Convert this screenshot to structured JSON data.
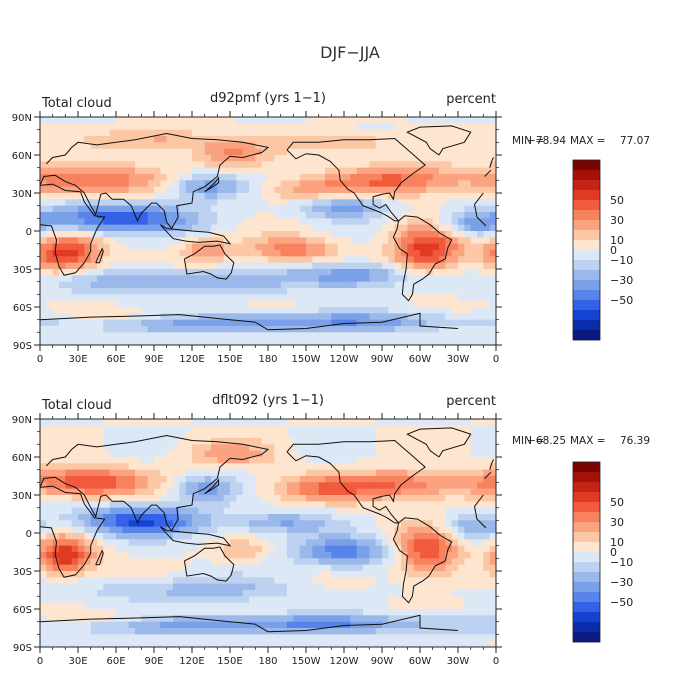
{
  "chart_data": {
    "type": "heatmap",
    "title": "DJF−JJA",
    "x_ticks": [
      "0",
      "30E",
      "60E",
      "90E",
      "120E",
      "150E",
      "180",
      "150W",
      "120W",
      "90W",
      "60W",
      "30W",
      "0"
    ],
    "y_ticks": [
      "90N",
      "60N",
      "30N",
      "0",
      "30S",
      "60S",
      "90S"
    ],
    "xlim": [
      0,
      360
    ],
    "ylim": [
      -90,
      90
    ],
    "colorbar_labels": [
      "50",
      "30",
      "10",
      "0",
      "−10",
      "−30",
      "−50"
    ],
    "colors": [
      "#fde5cf",
      "#fcc7a5",
      "#fba381",
      "#f8825e",
      "#f25a3d",
      "#e03a23",
      "#c42413",
      "#a31108",
      "#7b0403",
      "#dce8f6",
      "#bcd2f0",
      "#9bb8eb",
      "#7aa0ea",
      "#5884ea",
      "#3462e6",
      "#1443d2",
      "#0b2dab",
      "#0a1a80"
    ],
    "panels": [
      {
        "left_label": "Total cloud",
        "center_label": "d92pmf (yrs 1−1)",
        "right_label": "percent",
        "min_label": "MIN =",
        "min_value": "−78.94",
        "max_label": "MAX =",
        "max_value": "77.07",
        "blobs": [
          {
            "lon": 20,
            "lat": -18,
            "value": 55,
            "rlon": 28,
            "rlat": 15
          },
          {
            "lon": 305,
            "lat": -15,
            "value": 55,
            "rlon": 28,
            "rlat": 20
          },
          {
            "lon": 40,
            "lat": 40,
            "value": 45,
            "rlon": 55,
            "rlat": 12
          },
          {
            "lon": 285,
            "lat": 40,
            "value": 40,
            "rlon": 50,
            "rlat": 12
          },
          {
            "lon": 215,
            "lat": 32,
            "value": 30,
            "rlon": 40,
            "rlat": 10
          },
          {
            "lon": 150,
            "lat": 60,
            "value": 30,
            "rlon": 30,
            "rlat": 10
          },
          {
            "lon": 240,
            "lat": 70,
            "value": 25,
            "rlon": 40,
            "rlat": 8
          },
          {
            "lon": 200,
            "lat": -15,
            "value": 35,
            "rlon": 35,
            "rlat": 10
          },
          {
            "lon": 130,
            "lat": -15,
            "value": 30,
            "rlon": 20,
            "rlat": 10
          },
          {
            "lon": 60,
            "lat": 10,
            "value": -60,
            "rlon": 60,
            "rlat": 12
          },
          {
            "lon": 130,
            "lat": 35,
            "value": -40,
            "rlon": 30,
            "rlat": 10
          },
          {
            "lon": 240,
            "lat": 20,
            "value": -40,
            "rlon": 35,
            "rlat": 10
          },
          {
            "lon": 100,
            "lat": -40,
            "value": -30,
            "rlon": 90,
            "rlat": 10
          },
          {
            "lon": 250,
            "lat": -35,
            "value": -40,
            "rlon": 50,
            "rlat": 10
          },
          {
            "lon": 180,
            "lat": -72,
            "value": -40,
            "rlon": 180,
            "rlat": 8
          },
          {
            "lon": 80,
            "lat": -68,
            "value": 20,
            "rlon": 60,
            "rlat": 6
          },
          {
            "lon": 340,
            "lat": 5,
            "value": -35,
            "rlon": 25,
            "rlat": 10
          },
          {
            "lon": 100,
            "lat": 72,
            "value": 25,
            "rlon": 50,
            "rlat": 8
          }
        ]
      },
      {
        "left_label": "Total cloud",
        "center_label": "dflt092 (yrs 1−1)",
        "right_label": "percent",
        "min_label": "MIN =",
        "min_value": "−68.25",
        "max_label": "MAX =",
        "max_value": "76.39",
        "blobs": [
          {
            "lon": 20,
            "lat": -18,
            "value": 60,
            "rlon": 22,
            "rlat": 15
          },
          {
            "lon": 305,
            "lat": -15,
            "value": 50,
            "rlon": 25,
            "rlat": 20
          },
          {
            "lon": 35,
            "lat": 40,
            "value": 50,
            "rlon": 50,
            "rlat": 12
          },
          {
            "lon": 285,
            "lat": 38,
            "value": 40,
            "rlon": 50,
            "rlat": 12
          },
          {
            "lon": 220,
            "lat": 35,
            "value": 30,
            "rlon": 40,
            "rlat": 10
          },
          {
            "lon": 150,
            "lat": 62,
            "value": 25,
            "rlon": 35,
            "rlat": 10
          },
          {
            "lon": 80,
            "lat": 10,
            "value": -60,
            "rlon": 50,
            "rlat": 12
          },
          {
            "lon": 130,
            "lat": 35,
            "value": -35,
            "rlon": 25,
            "rlat": 10
          },
          {
            "lon": 240,
            "lat": -15,
            "value": -45,
            "rlon": 40,
            "rlat": 12
          },
          {
            "lon": 190,
            "lat": 8,
            "value": -30,
            "rlon": 40,
            "rlat": 8
          },
          {
            "lon": 120,
            "lat": -45,
            "value": -25,
            "rlon": 80,
            "rlat": 10
          },
          {
            "lon": 180,
            "lat": -72,
            "value": -40,
            "rlon": 180,
            "rlat": 8
          },
          {
            "lon": 60,
            "lat": -68,
            "value": 20,
            "rlon": 50,
            "rlat": 6
          },
          {
            "lon": 340,
            "lat": 5,
            "value": -30,
            "rlon": 25,
            "rlat": 10
          },
          {
            "lon": 160,
            "lat": -15,
            "value": 20,
            "rlon": 20,
            "rlat": 8
          }
        ]
      }
    ]
  }
}
